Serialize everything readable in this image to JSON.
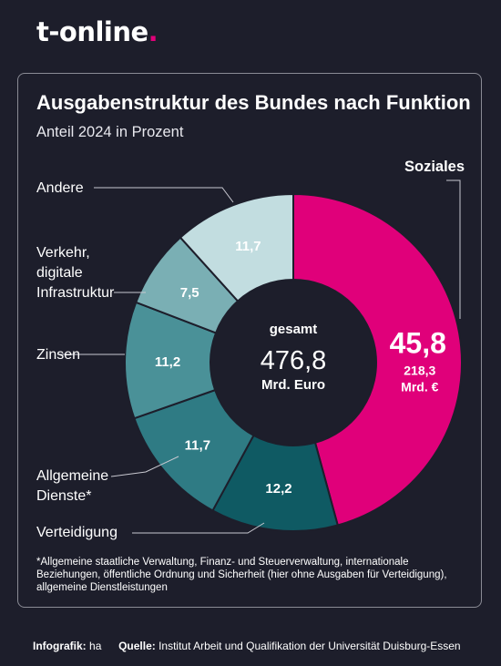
{
  "brand": {
    "name": "t-online",
    "dot": "."
  },
  "chart_data": {
    "type": "pie",
    "title": "Ausgabenstruktur des Bundes nach Funktion",
    "subtitle": "Anteil 2024 in Prozent",
    "center": {
      "label": "gesamt",
      "value": "476,8",
      "unit": "Mrd. Euro"
    },
    "slices": [
      {
        "name": "Soziales",
        "value": 45.8,
        "display": "45,8",
        "extra": "218,3",
        "extra_unit": "Mrd. €",
        "color": "#e0007a"
      },
      {
        "name": "Verteidigung",
        "value": 12.2,
        "display": "12,2",
        "color": "#0f5a63"
      },
      {
        "name": "Allgemeine Dienste*",
        "value": 11.7,
        "display": "11,7",
        "color": "#2f7b84"
      },
      {
        "name": "Zinsen",
        "value": 11.2,
        "display": "11,2",
        "color": "#4a9198"
      },
      {
        "name": "Verkehr, digitale Infrastruktur",
        "value": 7.5,
        "display": "7,5",
        "color": "#7aafb4"
      },
      {
        "name": "Andere",
        "value": 11.7,
        "display": "11,7",
        "color": "#c2dde0"
      }
    ]
  },
  "labels": {
    "soziales": "Soziales",
    "andere": "Andere",
    "verkehr": [
      "Verkehr,",
      "digitale",
      "Infrastruktur"
    ],
    "zinsen": "Zinsen",
    "allgemeine": [
      "Allgemeine",
      "Dienste*"
    ],
    "verteidigung": "Verteidigung"
  },
  "footnote": "*Allgemeine staatliche Verwaltung, Finanz- und Steuerverwaltung, internationale Beziehungen, öffentliche Ordnung und Sicherheit (hier ohne Ausgaben für Verteidigung), allgemeine Dienstleistungen",
  "footer": {
    "infografik_label": "Infografik:",
    "infografik_value": "ha",
    "quelle_label": "Quelle:",
    "quelle_value": "Institut Arbeit und Qualifikation der Universität Duisburg-Essen"
  }
}
